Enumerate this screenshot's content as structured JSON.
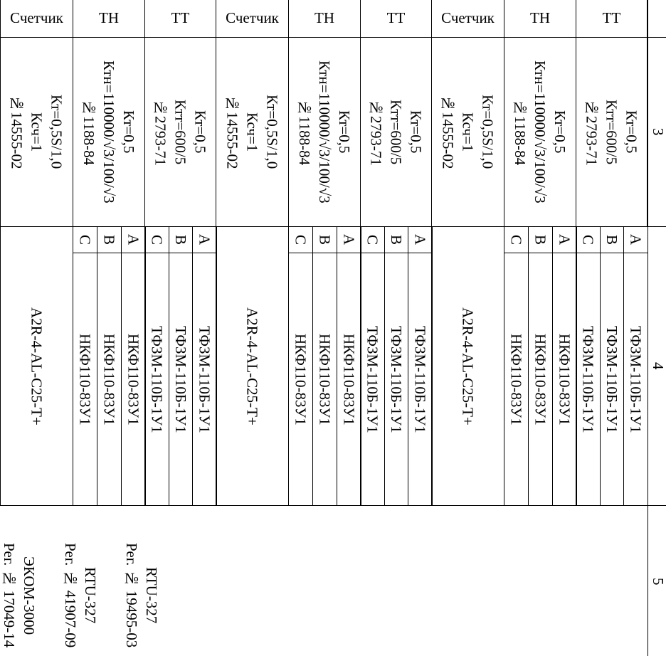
{
  "row_numbers": [
    "3",
    "4",
    "5"
  ],
  "groups": [
    {
      "meter": {
        "label": "Счетчик",
        "spec": [
          "Кт=0,5S/1,0",
          "Ксч=1",
          "№14555-02"
        ],
        "model": "A2R-4-AL-C25-T+"
      },
      "tn": {
        "label": "ТН",
        "spec": [
          "Кт=0,5",
          "Ктн=110000/√3/100/√3",
          "№1188-84"
        ],
        "phases": [
          {
            "phase": "C",
            "model": "НКФ110-83У1"
          },
          {
            "phase": "B",
            "model": "НКФ110-83У1"
          },
          {
            "phase": "A",
            "model": "НКФ110-83У1"
          }
        ]
      },
      "tt": {
        "label": "ТТ",
        "spec": [
          "Кт=0,5",
          "Ктт=600/5",
          "№2793-71"
        ],
        "phases": [
          {
            "phase": "C",
            "model": "ТФЗМ-110Б-1У1"
          },
          {
            "phase": "B",
            "model": "ТФЗМ-110Б-1У1"
          },
          {
            "phase": "A",
            "model": "ТФЗМ-110Б-1У1"
          }
        ]
      }
    },
    {
      "meter": {
        "label": "Счетчик",
        "spec": [
          "Кт=0,5S/1,0",
          "Ксч=1",
          "№14555-02"
        ],
        "model": "A2R-4-AL-C25-T+"
      },
      "tn": {
        "label": "ТН",
        "spec": [
          "Кт=0,5",
          "Ктн=110000/√3/100/√3",
          "№1188-84"
        ],
        "phases": [
          {
            "phase": "C",
            "model": "НКФ110-83У1"
          },
          {
            "phase": "B",
            "model": "НКФ110-83У1"
          },
          {
            "phase": "A",
            "model": "НКФ110-83У1"
          }
        ]
      },
      "tt": {
        "label": "ТТ",
        "spec": [
          "Кт=0,5",
          "Ктт=600/5",
          "№2793-71"
        ],
        "phases": [
          {
            "phase": "C",
            "model": "ТФЗМ-110Б-1У1"
          },
          {
            "phase": "B",
            "model": "ТФЗМ-110Б-1У1"
          },
          {
            "phase": "A",
            "model": "ТФЗМ-110Б-1У1"
          }
        ]
      }
    },
    {
      "meter": {
        "label": "Счетчик",
        "spec": [
          "Кт=0,5S/1,0",
          "Ксч=1",
          "№14555-02"
        ],
        "model": "A2R-4-AL-C25-T+"
      },
      "tn": {
        "label": "ТН",
        "spec": [
          "Кт=0,5",
          "Ктн=110000/√3/100/√3",
          "№1188-84"
        ],
        "phases": [
          {
            "phase": "C",
            "model": "НКФ110-83У1"
          },
          {
            "phase": "B",
            "model": "НКФ110-83У1"
          },
          {
            "phase": "A",
            "model": "НКФ110-83У1"
          }
        ]
      },
      "tt": {
        "label": "ТТ",
        "spec": [
          "Кт=0,5",
          "Ктт=600/5",
          "№2793-71"
        ],
        "phases": [
          {
            "phase": "C",
            "model": "ТФЗМ-110Б-1У1"
          },
          {
            "phase": "B",
            "model": "ТФЗМ-110Б-1У1"
          },
          {
            "phase": "A",
            "model": "ТФЗМ-110Б-1У1"
          }
        ]
      }
    }
  ],
  "controllers": [
    [
      "RTU-327",
      "Рег. № 19495-03"
    ],
    [
      "RTU-327",
      "Рег. № 41907-09"
    ],
    [
      "ЭКОМ-3000",
      "Рег. № 17049-14"
    ]
  ]
}
